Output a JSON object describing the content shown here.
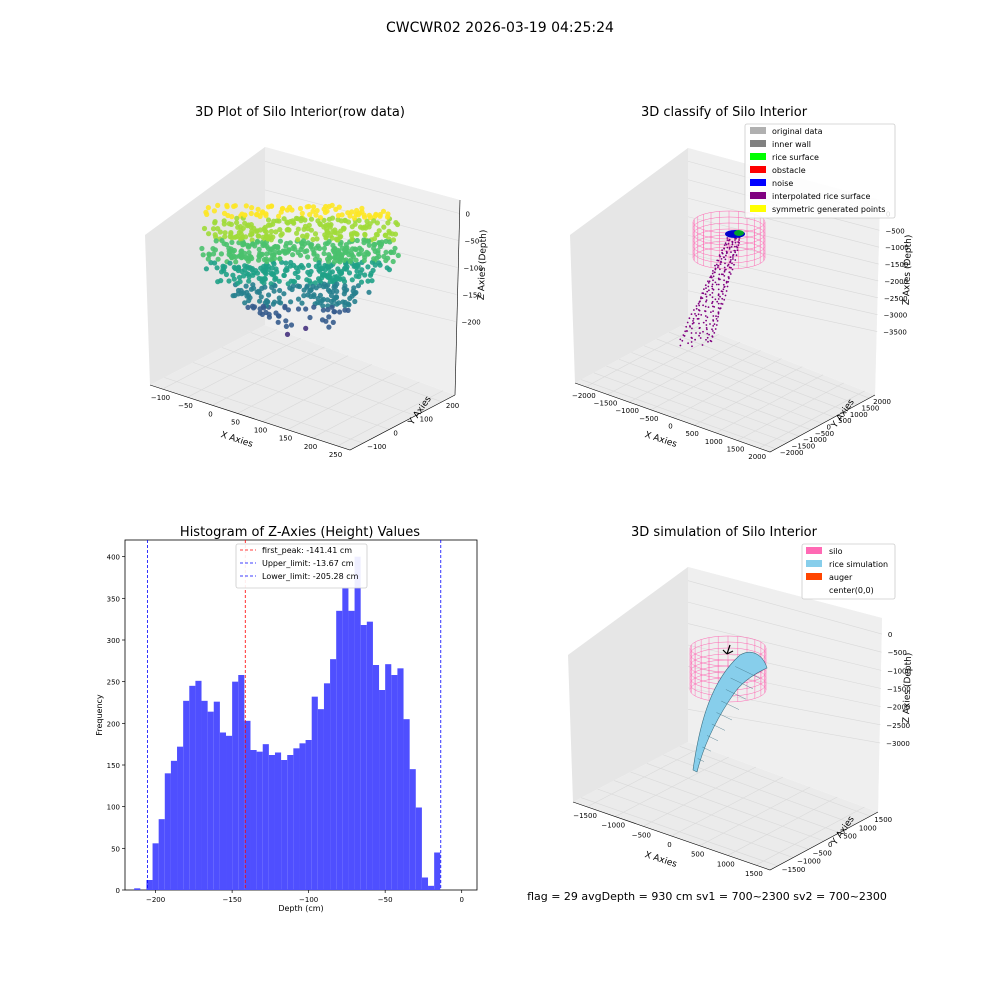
{
  "figure": {
    "title": "CWCWR02 2026-03-19 04:25:24",
    "footer": "flag = 29  avgDepth = 930 cm  sv1 = 700~2300  sv2 = 700~2300"
  },
  "colors": {
    "hist_bar": "#4b4bff",
    "peak_line": "#ff0000",
    "limit_line": "#0000ff",
    "silo": "#ff69b4",
    "rice_sim": "#87ceeb",
    "auger": "#ff4500",
    "interp": "#800080"
  },
  "chart_data": [
    {
      "type": "scatter",
      "title": "3D Plot of Silo Interior(row data)",
      "xlabel": "X Axies",
      "ylabel": "Y Axies",
      "zlabel": "Z Axies (Depth)",
      "xticks": [
        "−100",
        "−50",
        "0",
        "50",
        "100",
        "150",
        "200",
        "250"
      ],
      "yticks": [
        "−100",
        "0",
        "100",
        "200"
      ],
      "zticks": [
        "0",
        "−50",
        "−100",
        "−150",
        "−200"
      ],
      "colormap": "viridis"
    },
    {
      "type": "scatter",
      "title": "3D classify of Silo Interior",
      "xlabel": "X Axies",
      "ylabel": "Y Axies",
      "zlabel": "Z Axies (Depth)",
      "xticks": [
        "−2000",
        "−1500",
        "−1000",
        "−500",
        "0",
        "500",
        "1000",
        "1500",
        "2000"
      ],
      "yticks": [
        "−2000",
        "−1500",
        "−1000",
        "−500",
        "0",
        "500",
        "1000",
        "1500",
        "2000"
      ],
      "zticks": [
        "0",
        "−500",
        "−1000",
        "−1500",
        "−2000",
        "−2500",
        "−3000",
        "−3500"
      ],
      "legend": [
        {
          "label": "original data",
          "color": "#b0b0b0"
        },
        {
          "label": "inner wall",
          "color": "#808080"
        },
        {
          "label": "rice surface",
          "color": "#00ff00"
        },
        {
          "label": "obstacle",
          "color": "#ff0000"
        },
        {
          "label": "noise",
          "color": "#0000ff"
        },
        {
          "label": "interpolated rice surface",
          "color": "#800080"
        },
        {
          "label": "symmetric generated points",
          "color": "#ffff00"
        }
      ]
    },
    {
      "type": "bar",
      "title": "Histogram of Z-Axies (Height) Values",
      "xlabel": "Depth (cm)",
      "ylabel": "Frequency",
      "xlim": [
        -220,
        10
      ],
      "ylim": [
        0,
        420
      ],
      "xticks": [
        -200,
        -150,
        -100,
        -50,
        0
      ],
      "xtick_labels": [
        "−200",
        "−150",
        "−100",
        "−50",
        "0"
      ],
      "yticks": [
        0,
        50,
        100,
        150,
        200,
        250,
        300,
        350,
        400
      ],
      "bin_width": 4,
      "bins": [
        [
          -214,
          2
        ],
        [
          -206,
          12
        ],
        [
          -202,
          56
        ],
        [
          -198,
          85
        ],
        [
          -194,
          140
        ],
        [
          -190,
          155
        ],
        [
          -186,
          172
        ],
        [
          -182,
          227
        ],
        [
          -178,
          245
        ],
        [
          -174,
          251
        ],
        [
          -170,
          227
        ],
        [
          -166,
          214
        ],
        [
          -162,
          226
        ],
        [
          -158,
          189
        ],
        [
          -154,
          185
        ],
        [
          -150,
          250
        ],
        [
          -146,
          258
        ],
        [
          -142,
          203
        ],
        [
          -138,
          168
        ],
        [
          -134,
          166
        ],
        [
          -130,
          175
        ],
        [
          -126,
          162
        ],
        [
          -122,
          165
        ],
        [
          -118,
          156
        ],
        [
          -114,
          162
        ],
        [
          -110,
          170
        ],
        [
          -106,
          176
        ],
        [
          -102,
          180
        ],
        [
          -98,
          232
        ],
        [
          -94,
          217
        ],
        [
          -90,
          248
        ],
        [
          -86,
          277
        ],
        [
          -82,
          335
        ],
        [
          -78,
          362
        ],
        [
          -74,
          335
        ],
        [
          -70,
          400
        ],
        [
          -66,
          318
        ],
        [
          -62,
          322
        ],
        [
          -58,
          270
        ],
        [
          -54,
          240
        ],
        [
          -50,
          271
        ],
        [
          -46,
          258
        ],
        [
          -42,
          266
        ],
        [
          -38,
          205
        ],
        [
          -34,
          145
        ],
        [
          -30,
          99
        ],
        [
          -26,
          15
        ],
        [
          -22,
          5
        ],
        [
          -18,
          45
        ]
      ],
      "vlines": [
        {
          "label": "first_peak: -141.41 cm",
          "x": -141.41,
          "color": "#ff0000"
        },
        {
          "label": "Upper_limit: -13.67 cm",
          "x": -13.67,
          "color": "#0000ff"
        },
        {
          "label": "Lower_limit: -205.28 cm",
          "x": -205.28,
          "color": "#0000ff"
        }
      ]
    },
    {
      "type": "other",
      "title": "3D simulation of Silo Interior",
      "xlabel": "X Axies",
      "ylabel": "Y Axies",
      "zlabel": "Z Axies (Depth)",
      "xticks": [
        "−1500",
        "−1000",
        "−500",
        "0",
        "500",
        "1000",
        "1500"
      ],
      "yticks": [
        "−1500",
        "−1000",
        "−500",
        "0",
        "500",
        "1000",
        "1500"
      ],
      "zticks": [
        "0",
        "−500",
        "−1000",
        "−1500",
        "−2000",
        "−2500",
        "−3000"
      ],
      "legend": [
        {
          "label": "silo",
          "color": "#ff69b4"
        },
        {
          "label": "rice simulation",
          "color": "#87ceeb"
        },
        {
          "label": "auger",
          "color": "#ff4500"
        },
        {
          "label": "center(0,0)",
          "color": ""
        }
      ]
    }
  ]
}
